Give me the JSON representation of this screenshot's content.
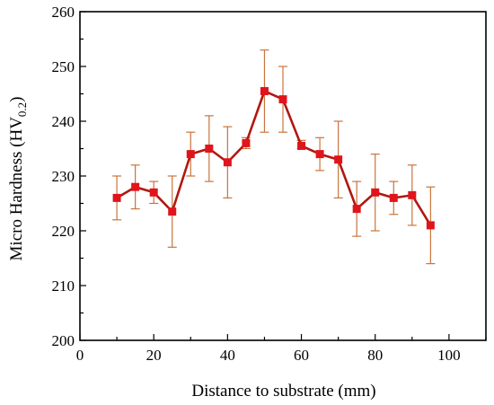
{
  "chart_data": {
    "type": "line",
    "title": "",
    "xlabel": "Distance to substrate (mm)",
    "ylabel_main": "Micro Hardness (HV",
    "ylabel_sub": "0.2",
    "ylabel_close": ")",
    "xlim": [
      0,
      110
    ],
    "ylim": [
      200,
      260
    ],
    "xticks": [
      0,
      20,
      40,
      60,
      80,
      100
    ],
    "yticks": [
      200,
      210,
      220,
      230,
      240,
      250,
      260
    ],
    "grid": false,
    "colors": {
      "line": "#b01810",
      "marker": "#e0141c",
      "error_bar": "#c8743c"
    },
    "series": [
      {
        "x": [
          10,
          15,
          20,
          25,
          30,
          35,
          40,
          45,
          50,
          55,
          60,
          65,
          70,
          75,
          80,
          85,
          90,
          95
        ],
        "y": [
          226,
          228,
          227,
          223.5,
          234,
          235,
          232.5,
          236,
          245.5,
          244,
          235.5,
          234,
          233,
          224,
          227,
          226,
          226.5,
          221
        ],
        "yerr_low": [
          222,
          224,
          225,
          217,
          230,
          229,
          226,
          235,
          238,
          238,
          235,
          231,
          226,
          219,
          220,
          223,
          221,
          214
        ],
        "yerr_high": [
          230,
          232,
          229,
          230,
          238,
          241,
          239,
          237,
          253,
          250,
          236.5,
          237,
          240,
          229,
          234,
          229,
          232,
          228
        ]
      }
    ]
  }
}
